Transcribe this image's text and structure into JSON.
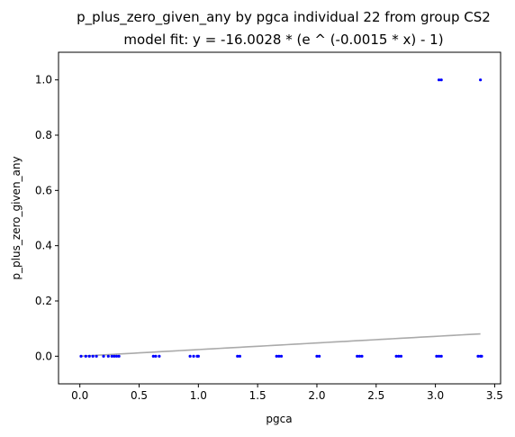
{
  "chart_data": {
    "type": "scatter",
    "title": "p_plus_zero_given_any by pgca individual 22 from group CS2",
    "subtitle": "model fit: y = -16.0028 * (e ^ (-0.0015 * x) - 1)",
    "xlabel": "pgca",
    "ylabel": "p_plus_zero_given_any",
    "xlim": [
      -0.18,
      3.55
    ],
    "ylim": [
      -0.1,
      1.1
    ],
    "xticks": [
      0.0,
      0.5,
      1.0,
      1.5,
      2.0,
      2.5,
      3.0,
      3.5
    ],
    "xtick_labels": [
      "0.0",
      "0.5",
      "1.0",
      "1.5",
      "2.0",
      "2.5",
      "3.0",
      "3.5"
    ],
    "yticks": [
      0.0,
      0.2,
      0.4,
      0.6,
      0.8,
      1.0
    ],
    "ytick_labels": [
      "0.0",
      "0.2",
      "0.4",
      "0.6",
      "0.8",
      "1.0"
    ],
    "grid": false,
    "point_color": "#0000ff",
    "fit_color": "#aaaaaa",
    "fit": {
      "a": -16.0028,
      "b": -0.0015,
      "x_range": [
        0.0,
        3.38
      ]
    },
    "points": {
      "x": [
        0.01,
        0.05,
        0.08,
        0.11,
        0.14,
        0.2,
        0.24,
        0.27,
        0.29,
        0.31,
        0.33,
        0.62,
        0.64,
        0.67,
        0.93,
        0.96,
        0.99,
        1.0,
        1.33,
        1.35,
        1.66,
        1.68,
        1.7,
        2.0,
        2.02,
        2.34,
        2.36,
        2.38,
        2.67,
        2.69,
        2.71,
        3.01,
        3.03,
        3.05,
        3.36,
        3.38,
        3.39,
        3.03,
        3.05,
        3.38
      ],
      "y": [
        0,
        0,
        0,
        0,
        0,
        0,
        0,
        0,
        0,
        0,
        0,
        0,
        0,
        0,
        0,
        0,
        0,
        0,
        0,
        0,
        0,
        0,
        0,
        0,
        0,
        0,
        0,
        0,
        0,
        0,
        0,
        0,
        0,
        0,
        0,
        0,
        0,
        1,
        1,
        1
      ]
    }
  }
}
